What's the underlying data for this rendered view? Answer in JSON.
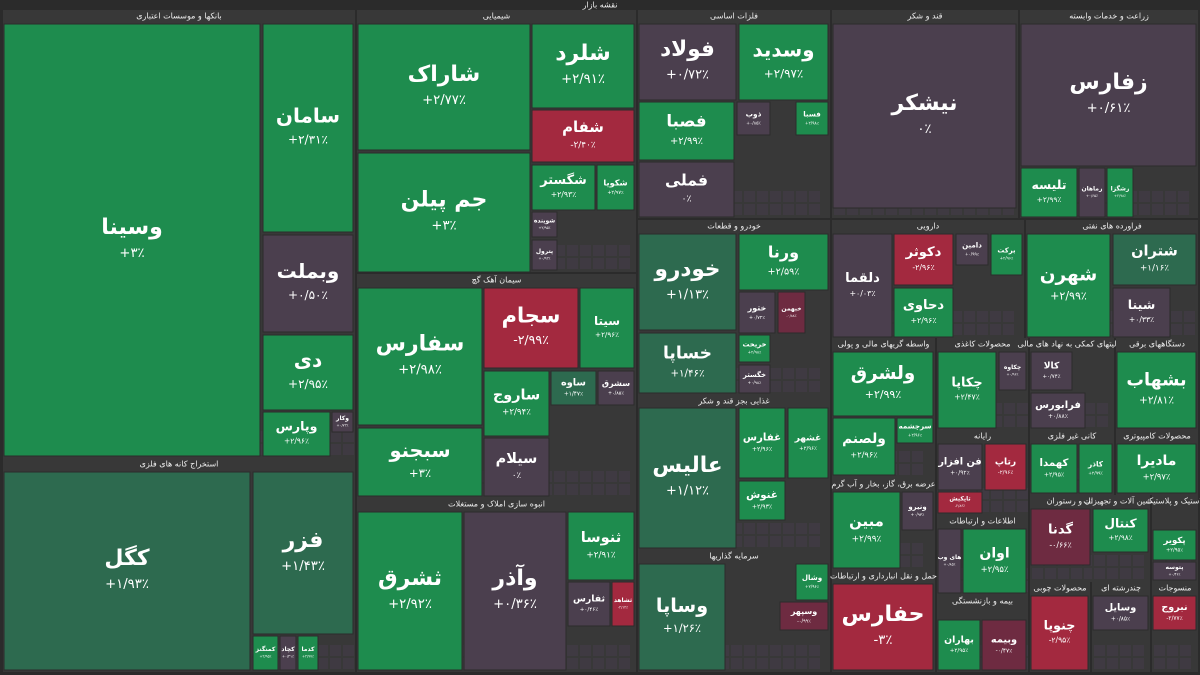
{
  "title": "نقشه بازار",
  "sectors": [
    {
      "title": "بانکها و موسسات اعتباری",
      "tiles": [
        {
          "name": "وسینا",
          "change": "+۳٪",
          "color": "#1e8c4e"
        },
        {
          "name": "سامان",
          "change": "+۲/۳۱٪",
          "color": "#1e8c4e"
        },
        {
          "name": "وبملت",
          "change": "+۰/۵۰٪",
          "color": "#4b3f4e"
        },
        {
          "name": "دی",
          "change": "+۲/۹۵٪",
          "color": "#1e8c4e"
        },
        {
          "name": "وپارس",
          "change": "+۲/۹۶٪",
          "color": "#1e8c4e"
        },
        {
          "name": "وکار",
          "change": "+۰/۷۲٪",
          "color": "#4b3f4e"
        }
      ]
    },
    {
      "title": "استخراج کانه های فلزی",
      "tiles": [
        {
          "name": "کگل",
          "change": "+۱/۹۳٪",
          "color": "#2d6a4f"
        },
        {
          "name": "فزر",
          "change": "+۱/۴۳٪",
          "color": "#2d6a4f"
        },
        {
          "name": "کمنگنز",
          "change": "+۲/۹۵٪",
          "color": "#1e8c4e"
        },
        {
          "name": "کچاد",
          "change": "+۰/۴۱٪",
          "color": "#4b3f4e"
        },
        {
          "name": "کدما",
          "change": "+۲/۹۷٪",
          "color": "#1e8c4e"
        }
      ]
    },
    {
      "title": "شیمیایی",
      "tiles": [
        {
          "name": "شاراک",
          "change": "+۲/۷۷٪",
          "color": "#1e8c4e"
        },
        {
          "name": "شلرد",
          "change": "+۲/۹۱٪",
          "color": "#1e8c4e"
        },
        {
          "name": "شفام",
          "change": "-۲/۴۰٪",
          "color": "#a3293f"
        },
        {
          "name": "جم پیلن",
          "change": "+۳٪",
          "color": "#1e8c4e"
        },
        {
          "name": "شگستر",
          "change": "+۲/۹۳٪",
          "color": "#1e8c4e"
        },
        {
          "name": "شکویا",
          "change": "+۲/۹۷٪",
          "color": "#1e8c4e"
        },
        {
          "name": "شوینده",
          "change": "+۲/۹۵٪",
          "color": "#4b3f4e"
        },
        {
          "name": "پترول",
          "change": "+۰/۹۲٪",
          "color": "#4b3f4e"
        }
      ]
    },
    {
      "title": "سیمان آهک گچ",
      "tiles": [
        {
          "name": "سفارس",
          "change": "+۲/۹۸٪",
          "color": "#1e8c4e"
        },
        {
          "name": "سجام",
          "change": "-۲/۹۹٪",
          "color": "#a3293f"
        },
        {
          "name": "سیتا",
          "change": "+۲/۹۶٪",
          "color": "#1e8c4e"
        },
        {
          "name": "ساروج",
          "change": "+۲/۹۴٪",
          "color": "#1e8c4e"
        },
        {
          "name": "ساوه",
          "change": "+۱/۴۷٪",
          "color": "#2d6a4f"
        },
        {
          "name": "سشرق",
          "change": "+۰/۸۵٪",
          "color": "#4b3f4e"
        },
        {
          "name": "سبجنو",
          "change": "+۳٪",
          "color": "#1e8c4e"
        },
        {
          "name": "سیلام",
          "change": "۰٪",
          "color": "#4b3f4e"
        }
      ]
    },
    {
      "title": "انبوه سازی املاک و مستغلات",
      "tiles": [
        {
          "name": "ثشرق",
          "change": "+۲/۹۲٪",
          "color": "#1e8c4e"
        },
        {
          "name": "وآذر",
          "change": "+۰/۳۶٪",
          "color": "#4b3f4e"
        },
        {
          "name": "ثنوسا",
          "change": "+۲/۹۱٪",
          "color": "#1e8c4e"
        },
        {
          "name": "ثفارس",
          "change": "+۰/۴۶٪",
          "color": "#4b3f4e"
        },
        {
          "name": "ثشاهد",
          "change": "-۲/۱۲٪",
          "color": "#a3293f"
        }
      ]
    },
    {
      "title": "فلزات اساسی",
      "tiles": [
        {
          "name": "فولاد",
          "change": "+۰/۷۲٪",
          "color": "#4b3f4e"
        },
        {
          "name": "وسدید",
          "change": "+۲/۹۷٪",
          "color": "#1e8c4e"
        },
        {
          "name": "فصبا",
          "change": "+۲/۹۹٪",
          "color": "#1e8c4e"
        },
        {
          "name": "فملی",
          "change": "۰٪",
          "color": "#4b3f4e"
        },
        {
          "name": "ذوب",
          "change": "+۰/۸۵٪",
          "color": "#4b3f4e"
        },
        {
          "name": "فسبا",
          "change": "+۲/۹۸٪",
          "color": "#1e8c4e"
        }
      ]
    },
    {
      "title": "قند و شکر",
      "tiles": [
        {
          "name": "نیشکر",
          "change": "۰٪",
          "color": "#4b3f4e"
        }
      ]
    },
    {
      "title": "زراعت و خدمات وابسته",
      "tiles": [
        {
          "name": "زفارس",
          "change": "+۰/۶۱٪",
          "color": "#4b3f4e"
        },
        {
          "name": "تلیسه",
          "change": "+۲/۹۹٪",
          "color": "#1e8c4e"
        },
        {
          "name": "زماهان",
          "change": "+۰/۶۵٪",
          "color": "#4b3f4e"
        },
        {
          "name": "زشگزا",
          "change": "+۲/۹۸٪",
          "color": "#1e8c4e"
        }
      ]
    },
    {
      "title": "خودرو و قطعات",
      "tiles": [
        {
          "name": "خودرو",
          "change": "+۱/۱۳٪",
          "color": "#2d6a4f"
        },
        {
          "name": "ورنا",
          "change": "+۲/۵۹٪",
          "color": "#1e8c4e"
        },
        {
          "name": "خساپا",
          "change": "+۱/۴۶٪",
          "color": "#2d6a4f"
        },
        {
          "name": "ختور",
          "change": "+۰/۷۲٪",
          "color": "#4b3f4e"
        },
        {
          "name": "خبهمن",
          "change": "-۰/۸۸٪",
          "color": "#6e2b41"
        },
        {
          "name": "خریخت",
          "change": "+۲/۹۸٪",
          "color": "#1e8c4e"
        },
        {
          "name": "خگستر",
          "change": "+۰/۹۸٪",
          "color": "#4b3f4e"
        }
      ]
    },
    {
      "title": "غذایی بجز قند و شکر",
      "tiles": [
        {
          "name": "عالیس",
          "change": "+۱/۱۲٪",
          "color": "#2d6a4f"
        },
        {
          "name": "غفارس",
          "change": "+۲/۹۶٪",
          "color": "#1e8c4e"
        },
        {
          "name": "غشهر",
          "change": "+۲/۹۶٪",
          "color": "#1e8c4e"
        },
        {
          "name": "غنوش",
          "change": "+۲/۹۳٪",
          "color": "#1e8c4e"
        }
      ]
    },
    {
      "title": "سرمایه گذاریها",
      "tiles": [
        {
          "name": "وساپا",
          "change": "+۱/۲۶٪",
          "color": "#2d6a4f"
        },
        {
          "name": "وشال",
          "change": "+۲/۹۶٪",
          "color": "#1e8c4e"
        },
        {
          "name": "وسپهر",
          "change": "-۰/۹۹٪",
          "color": "#6e2b41"
        }
      ]
    },
    {
      "title": "دارویی",
      "tiles": [
        {
          "name": "دلقما",
          "change": "+۰/۰۳٪",
          "color": "#4b3f4e"
        },
        {
          "name": "دکوثر",
          "change": "-۲/۹۶٪",
          "color": "#a3293f"
        },
        {
          "name": "دحاوی",
          "change": "+۲/۹۶٪",
          "color": "#1e8c4e"
        },
        {
          "name": "دامین",
          "change": "+۰/۹۹٪",
          "color": "#4b3f4e"
        },
        {
          "name": "برکت",
          "change": "+۲/۹۶٪",
          "color": "#1e8c4e"
        }
      ]
    },
    {
      "title": "فراورده های نفتی",
      "tiles": [
        {
          "name": "شهرن",
          "change": "+۲/۹۹٪",
          "color": "#1e8c4e"
        },
        {
          "name": "شتران",
          "change": "+۱/۱۶٪",
          "color": "#2d6a4f"
        },
        {
          "name": "شینا",
          "change": "+۰/۳۳٪",
          "color": "#4b3f4e"
        }
      ]
    },
    {
      "title": "واسطه گریهای مالی و پولی",
      "tiles": [
        {
          "name": "ولشرق",
          "change": "+۲/۹۹٪",
          "color": "#1e8c4e"
        },
        {
          "name": "ولصنم",
          "change": "+۲/۹۶٪",
          "color": "#1e8c4e"
        },
        {
          "name": "سرچشمه",
          "change": "+۲/۹۶٪",
          "color": "#1e8c4e"
        }
      ]
    },
    {
      "title": "محصولات کاغذی",
      "tiles": [
        {
          "name": "چکاپا",
          "change": "+۲/۴۷٪",
          "color": "#1e8c4e"
        },
        {
          "name": "چکاوه",
          "change": "+۰/۹۶٪",
          "color": "#4b3f4e"
        }
      ]
    },
    {
      "title": "فعالیتهای کمکی به نهاد های مالی",
      "tiles": [
        {
          "name": "کالا",
          "change": "+۰/۷۴٪",
          "color": "#4b3f4e"
        },
        {
          "name": "فرابورس",
          "change": "+۰/۸۸٪",
          "color": "#4b3f4e"
        }
      ]
    },
    {
      "title": "دستگاههای برقی",
      "tiles": [
        {
          "name": "بشهاب",
          "change": "+۲/۸۱٪",
          "color": "#1e8c4e"
        }
      ]
    },
    {
      "title": "رایانه",
      "tiles": [
        {
          "name": "رتاپ",
          "change": "-۲/۹۶٪",
          "color": "#a3293f"
        },
        {
          "name": "فن افزار",
          "change": "+۰/۹۲٪",
          "color": "#4b3f4e"
        },
        {
          "name": "تاپکیش",
          "change": "-۲/۸۶٪",
          "color": "#a3293f"
        }
      ]
    },
    {
      "title": "کانی غیر فلزی",
      "tiles": [
        {
          "name": "کهمدا",
          "change": "+۲/۹۵٪",
          "color": "#1e8c4e"
        },
        {
          "name": "کاذر",
          "change": "+۲/۹۹٪",
          "color": "#1e8c4e"
        }
      ]
    },
    {
      "title": "محصولات کامپیوتری",
      "tiles": [
        {
          "name": "مادیرا",
          "change": "+۲/۹۷٪",
          "color": "#1e8c4e"
        }
      ]
    },
    {
      "title": "عرضه برق، گاز، بخار و آب گرم",
      "tiles": [
        {
          "name": "مبین",
          "change": "+۲/۹۹٪",
          "color": "#1e8c4e"
        },
        {
          "name": "ونیرو",
          "change": "+۰/۹۳٪",
          "color": "#4b3f4e"
        }
      ]
    },
    {
      "title": "اطلاعات و ارتباطات",
      "tiles": [
        {
          "name": "اوان",
          "change": "+۲/۹۵٪",
          "color": "#1e8c4e"
        },
        {
          "name": "های وب",
          "change": "+۰/۸۵٪",
          "color": "#4b3f4e"
        }
      ]
    },
    {
      "title": "هتل و رستوران",
      "tiles": [
        {
          "name": "گدنا",
          "change": "-۰/۶۶٪",
          "color": "#6e2b41"
        }
      ]
    },
    {
      "title": "ماشین آلات و تجهیزات",
      "tiles": [
        {
          "name": "کنتال",
          "change": "+۲/۹۸٪",
          "color": "#1e8c4e"
        }
      ]
    },
    {
      "title": "لاستیک و پلاستیک",
      "tiles": [
        {
          "name": "پکویر",
          "change": "+۲/۹۵٪",
          "color": "#1e8c4e"
        },
        {
          "name": "پتوسه",
          "change": "+۰/۴۶٪",
          "color": "#4b3f4e"
        }
      ]
    },
    {
      "title": "حمل و نقل انبارداری و ارتباطات",
      "tiles": [
        {
          "name": "حفارس",
          "change": "-۳٪",
          "color": "#a3293f"
        }
      ]
    },
    {
      "title": "بیمه و بازنشستگی",
      "tiles": [
        {
          "name": "بهاران",
          "change": "+۲/۹۵٪",
          "color": "#1e8c4e"
        },
        {
          "name": "وبیمه",
          "change": "-۰/۴۷٪",
          "color": "#6e2b41"
        }
      ]
    },
    {
      "title": "محصولات چوبی",
      "tiles": [
        {
          "name": "چنوپا",
          "change": "-۲/۹۵٪",
          "color": "#a3293f"
        }
      ]
    },
    {
      "title": "چندرشته ای",
      "tiles": [
        {
          "name": "وسایل",
          "change": "+۰/۸۵٪",
          "color": "#4b3f4e"
        }
      ]
    },
    {
      "title": "منسوجات",
      "tiles": [
        {
          "name": "نبروج",
          "change": "-۲/۷۷٪",
          "color": "#a3293f"
        }
      ]
    }
  ]
}
